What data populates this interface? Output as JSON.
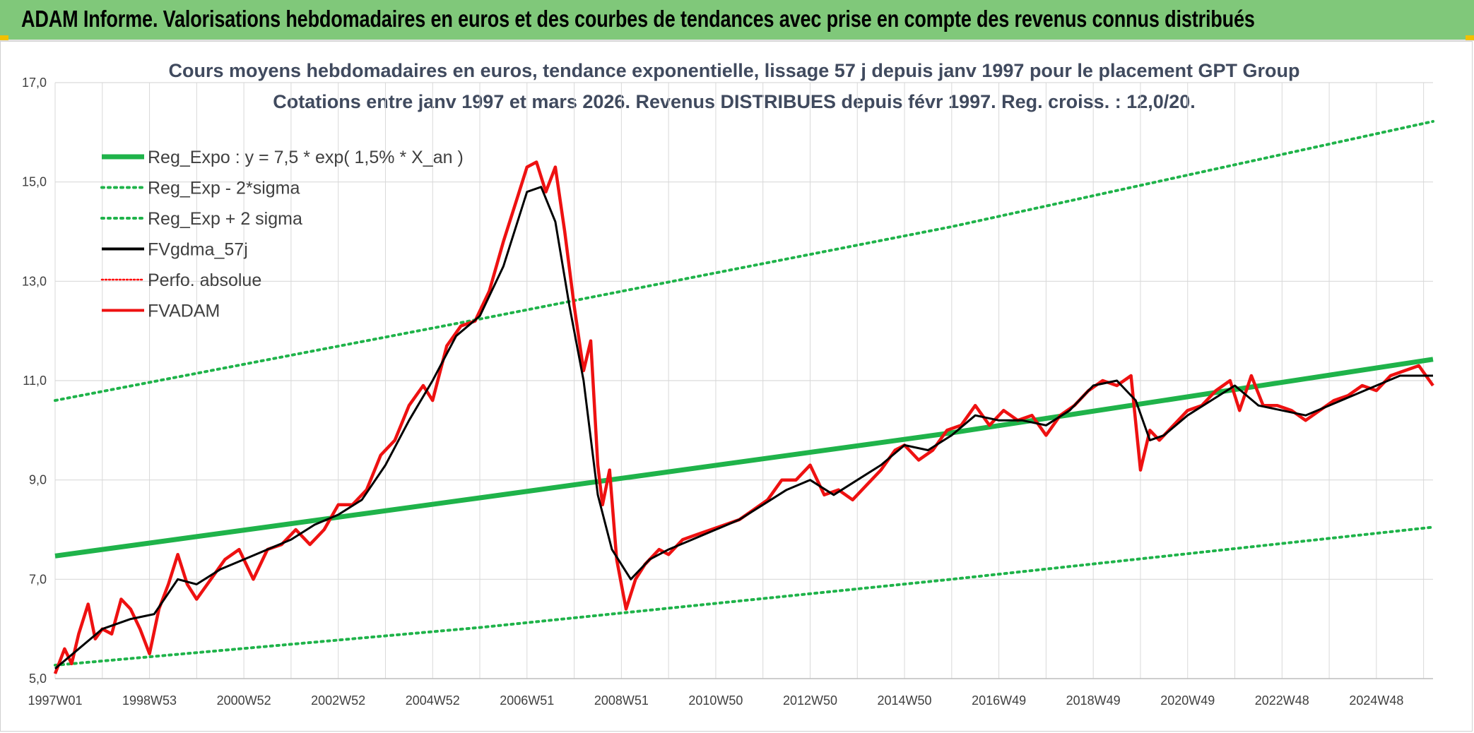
{
  "header": {
    "title": "ADAM Informe. Valorisations hebdomadaires en euros et des courbes de tendances avec prise en compte des revenus connus distribués"
  },
  "colors": {
    "header_band": "#80c87a",
    "accent_corners": "#f2c000",
    "trend_green": "#1fb34a",
    "fvadam_red": "#ee1111",
    "fvgdma_black": "#000000",
    "perfo_red": "#ff0000",
    "grid": "#d9d9d9"
  },
  "chart_data": {
    "type": "line",
    "title_lines": [
      "Cours moyens hebdomadaires en euros, tendance exponentielle, lissage 57 j depuis janv 1997 pour le placement GPT Group",
      "Cotations entre janv 1997 et mars 2026. Revenus DISTRIBUES depuis févr 1997. Reg. croiss. : 12,0/20."
    ],
    "xlabel": "",
    "ylabel": "",
    "xlim": [
      1997.0,
      2026.2
    ],
    "ylim": [
      5.0,
      17.0
    ],
    "grid": true,
    "legend_position": "top-left",
    "x_ticks": [
      {
        "x": 1997.0,
        "label": "1997W01"
      },
      {
        "x": 1999.0,
        "label": "1998W53"
      },
      {
        "x": 2001.0,
        "label": "2000W52"
      },
      {
        "x": 2003.0,
        "label": "2002W52"
      },
      {
        "x": 2005.0,
        "label": "2004W52"
      },
      {
        "x": 2007.0,
        "label": "2006W51"
      },
      {
        "x": 2009.0,
        "label": "2008W51"
      },
      {
        "x": 2011.0,
        "label": "2010W50"
      },
      {
        "x": 2013.0,
        "label": "2012W50"
      },
      {
        "x": 2015.0,
        "label": "2014W50"
      },
      {
        "x": 2017.0,
        "label": "2016W49"
      },
      {
        "x": 2019.0,
        "label": "2018W49"
      },
      {
        "x": 2021.0,
        "label": "2020W49"
      },
      {
        "x": 2023.0,
        "label": "2022W48"
      },
      {
        "x": 2025.0,
        "label": "2024W48"
      }
    ],
    "y_ticks": [
      {
        "y": 5,
        "label": "5,0"
      },
      {
        "y": 7,
        "label": "7,0"
      },
      {
        "y": 9,
        "label": "9,0"
      },
      {
        "y": 11,
        "label": "11,0"
      },
      {
        "y": 13,
        "label": "13,0"
      },
      {
        "y": 15,
        "label": "15,0"
      },
      {
        "y": 17,
        "label": "17,0"
      }
    ],
    "series": [
      {
        "name": "Reg_Expo : y = 7,5 * exp( 1,5% *  X_an )",
        "style": "thick-solid",
        "color": "#1fb34a",
        "points": [
          [
            1997.0,
            7.47
          ],
          [
            2006.0,
            8.64
          ],
          [
            2016.0,
            9.95
          ],
          [
            2026.2,
            11.43
          ]
        ]
      },
      {
        "name": "Reg_Exp - 2*sigma",
        "style": "dotted",
        "color": "#1fb34a",
        "points": [
          [
            1997.0,
            5.27
          ],
          [
            2006.0,
            6.03
          ],
          [
            2016.0,
            7.0
          ],
          [
            2026.2,
            8.05
          ]
        ]
      },
      {
        "name": "Reg_Exp + 2 sigma",
        "style": "dotted",
        "color": "#1fb34a",
        "points": [
          [
            1997.0,
            10.6
          ],
          [
            2006.0,
            12.24
          ],
          [
            2016.0,
            14.1
          ],
          [
            2026.2,
            16.22
          ]
        ]
      },
      {
        "name": "FVgdma_57j",
        "style": "solid",
        "color": "#000000",
        "points": [
          [
            1997.0,
            5.2
          ],
          [
            1997.5,
            5.6
          ],
          [
            1998.0,
            6.0
          ],
          [
            1998.6,
            6.2
          ],
          [
            1999.1,
            6.3
          ],
          [
            1999.6,
            7.0
          ],
          [
            2000.0,
            6.9
          ],
          [
            2000.5,
            7.2
          ],
          [
            2001.0,
            7.4
          ],
          [
            2001.5,
            7.6
          ],
          [
            2002.0,
            7.8
          ],
          [
            2002.5,
            8.1
          ],
          [
            2003.0,
            8.3
          ],
          [
            2003.5,
            8.6
          ],
          [
            2004.0,
            9.3
          ],
          [
            2004.5,
            10.2
          ],
          [
            2005.0,
            11.0
          ],
          [
            2005.5,
            11.9
          ],
          [
            2006.0,
            12.3
          ],
          [
            2006.5,
            13.3
          ],
          [
            2007.0,
            14.8
          ],
          [
            2007.3,
            14.9
          ],
          [
            2007.6,
            14.2
          ],
          [
            2007.9,
            12.5
          ],
          [
            2008.2,
            11.0
          ],
          [
            2008.5,
            8.7
          ],
          [
            2008.8,
            7.6
          ],
          [
            2009.2,
            7.0
          ],
          [
            2009.6,
            7.4
          ],
          [
            2010.0,
            7.6
          ],
          [
            2010.5,
            7.8
          ],
          [
            2011.0,
            8.0
          ],
          [
            2011.5,
            8.2
          ],
          [
            2012.0,
            8.5
          ],
          [
            2012.5,
            8.8
          ],
          [
            2013.0,
            9.0
          ],
          [
            2013.5,
            8.7
          ],
          [
            2014.0,
            9.0
          ],
          [
            2014.5,
            9.3
          ],
          [
            2015.0,
            9.7
          ],
          [
            2015.5,
            9.6
          ],
          [
            2016.0,
            9.9
          ],
          [
            2016.5,
            10.3
          ],
          [
            2017.0,
            10.2
          ],
          [
            2017.5,
            10.2
          ],
          [
            2018.0,
            10.1
          ],
          [
            2018.5,
            10.4
          ],
          [
            2019.0,
            10.9
          ],
          [
            2019.5,
            11.0
          ],
          [
            2019.9,
            10.6
          ],
          [
            2020.2,
            9.8
          ],
          [
            2020.5,
            9.9
          ],
          [
            2021.0,
            10.3
          ],
          [
            2021.5,
            10.6
          ],
          [
            2022.0,
            10.9
          ],
          [
            2022.5,
            10.5
          ],
          [
            2023.0,
            10.4
          ],
          [
            2023.5,
            10.3
          ],
          [
            2024.0,
            10.5
          ],
          [
            2024.5,
            10.7
          ],
          [
            2025.0,
            10.9
          ],
          [
            2025.5,
            11.1
          ],
          [
            2026.2,
            11.1
          ]
        ]
      },
      {
        "name": "Perfo. absolue",
        "style": "dotted",
        "color": "#ff0000",
        "points": []
      },
      {
        "name": "FVADAM",
        "style": "solid",
        "color": "#ee1111",
        "points": [
          [
            1997.0,
            5.1
          ],
          [
            1997.2,
            5.6
          ],
          [
            1997.35,
            5.3
          ],
          [
            1997.5,
            5.9
          ],
          [
            1997.7,
            6.5
          ],
          [
            1997.85,
            5.8
          ],
          [
            1998.0,
            6.0
          ],
          [
            1998.2,
            5.9
          ],
          [
            1998.4,
            6.6
          ],
          [
            1998.6,
            6.4
          ],
          [
            1998.8,
            6.0
          ],
          [
            1999.0,
            5.5
          ],
          [
            1999.2,
            6.4
          ],
          [
            1999.4,
            6.9
          ],
          [
            1999.6,
            7.5
          ],
          [
            1999.8,
            6.9
          ],
          [
            2000.0,
            6.6
          ],
          [
            2000.3,
            7.0
          ],
          [
            2000.6,
            7.4
          ],
          [
            2000.9,
            7.6
          ],
          [
            2001.2,
            7.0
          ],
          [
            2001.5,
            7.6
          ],
          [
            2001.8,
            7.7
          ],
          [
            2002.1,
            8.0
          ],
          [
            2002.4,
            7.7
          ],
          [
            2002.7,
            8.0
          ],
          [
            2003.0,
            8.5
          ],
          [
            2003.3,
            8.5
          ],
          [
            2003.6,
            8.8
          ],
          [
            2003.9,
            9.5
          ],
          [
            2004.2,
            9.8
          ],
          [
            2004.5,
            10.5
          ],
          [
            2004.8,
            10.9
          ],
          [
            2005.0,
            10.6
          ],
          [
            2005.3,
            11.7
          ],
          [
            2005.6,
            12.1
          ],
          [
            2005.9,
            12.2
          ],
          [
            2006.2,
            12.8
          ],
          [
            2006.5,
            13.8
          ],
          [
            2006.8,
            14.7
          ],
          [
            2007.0,
            15.3
          ],
          [
            2007.2,
            15.4
          ],
          [
            2007.4,
            14.8
          ],
          [
            2007.6,
            15.3
          ],
          [
            2007.8,
            14.0
          ],
          [
            2008.0,
            12.5
          ],
          [
            2008.2,
            11.2
          ],
          [
            2008.35,
            11.8
          ],
          [
            2008.5,
            9.3
          ],
          [
            2008.6,
            8.5
          ],
          [
            2008.75,
            9.2
          ],
          [
            2008.9,
            7.4
          ],
          [
            2009.1,
            6.4
          ],
          [
            2009.3,
            7.0
          ],
          [
            2009.5,
            7.3
          ],
          [
            2009.8,
            7.6
          ],
          [
            2010.0,
            7.5
          ],
          [
            2010.3,
            7.8
          ],
          [
            2010.6,
            7.9
          ],
          [
            2010.9,
            8.0
          ],
          [
            2011.2,
            8.1
          ],
          [
            2011.5,
            8.2
          ],
          [
            2011.8,
            8.4
          ],
          [
            2012.1,
            8.6
          ],
          [
            2012.4,
            9.0
          ],
          [
            2012.7,
            9.0
          ],
          [
            2013.0,
            9.3
          ],
          [
            2013.3,
            8.7
          ],
          [
            2013.6,
            8.8
          ],
          [
            2013.9,
            8.6
          ],
          [
            2014.2,
            8.9
          ],
          [
            2014.5,
            9.2
          ],
          [
            2014.8,
            9.6
          ],
          [
            2015.0,
            9.7
          ],
          [
            2015.3,
            9.4
          ],
          [
            2015.6,
            9.6
          ],
          [
            2015.9,
            10.0
          ],
          [
            2016.2,
            10.1
          ],
          [
            2016.5,
            10.5
          ],
          [
            2016.8,
            10.1
          ],
          [
            2017.1,
            10.4
          ],
          [
            2017.4,
            10.2
          ],
          [
            2017.7,
            10.3
          ],
          [
            2018.0,
            9.9
          ],
          [
            2018.3,
            10.3
          ],
          [
            2018.6,
            10.5
          ],
          [
            2018.9,
            10.8
          ],
          [
            2019.2,
            11.0
          ],
          [
            2019.5,
            10.9
          ],
          [
            2019.8,
            11.1
          ],
          [
            2020.0,
            9.2
          ],
          [
            2020.2,
            10.0
          ],
          [
            2020.4,
            9.8
          ],
          [
            2020.7,
            10.1
          ],
          [
            2021.0,
            10.4
          ],
          [
            2021.3,
            10.5
          ],
          [
            2021.6,
            10.8
          ],
          [
            2021.9,
            11.0
          ],
          [
            2022.1,
            10.4
          ],
          [
            2022.35,
            11.1
          ],
          [
            2022.6,
            10.5
          ],
          [
            2022.9,
            10.5
          ],
          [
            2023.2,
            10.4
          ],
          [
            2023.5,
            10.2
          ],
          [
            2023.8,
            10.4
          ],
          [
            2024.1,
            10.6
          ],
          [
            2024.4,
            10.7
          ],
          [
            2024.7,
            10.9
          ],
          [
            2025.0,
            10.8
          ],
          [
            2025.3,
            11.1
          ],
          [
            2025.6,
            11.2
          ],
          [
            2025.9,
            11.3
          ],
          [
            2026.2,
            10.9
          ]
        ]
      }
    ]
  }
}
